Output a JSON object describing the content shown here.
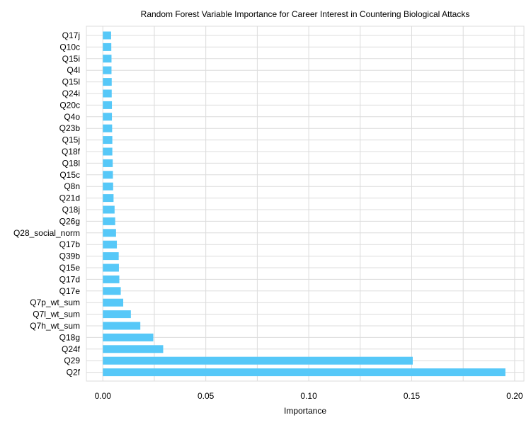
{
  "chart_data": {
    "type": "bar",
    "orientation": "horizontal",
    "title": "Random Forest Variable Importance for Career Interest in Countering Biological Attacks",
    "xlabel": "Importance",
    "ylabel": "",
    "xlim": [
      -0.008,
      0.2045
    ],
    "xticks": [
      0.0,
      0.05,
      0.1,
      0.15,
      0.2
    ],
    "xtick_labels": [
      "0.00",
      "0.05",
      "0.10",
      "0.15",
      "0.20"
    ],
    "grid": true,
    "bar_color": "#56c8f8",
    "grid_color": "#dcdcdc",
    "categories": [
      "Q17j",
      "Q10c",
      "Q15i",
      "Q4l",
      "Q15l",
      "Q24i",
      "Q20c",
      "Q4o",
      "Q23b",
      "Q15j",
      "Q18f",
      "Q18l",
      "Q15c",
      "Q8n",
      "Q21d",
      "Q18j",
      "Q26g",
      "Q28_social_norm",
      "Q17b",
      "Q39b",
      "Q15e",
      "Q17d",
      "Q17e",
      "Q7p_wt_sum",
      "Q7l_wt_sum",
      "Q7h_wt_sum",
      "Q18g",
      "Q24f",
      "Q29",
      "Q2f"
    ],
    "values": [
      0.004,
      0.0041,
      0.0042,
      0.0042,
      0.0043,
      0.0043,
      0.0044,
      0.0044,
      0.0045,
      0.0046,
      0.0046,
      0.0048,
      0.0049,
      0.005,
      0.0052,
      0.0057,
      0.006,
      0.0064,
      0.0068,
      0.0077,
      0.0078,
      0.008,
      0.0087,
      0.0099,
      0.0136,
      0.0182,
      0.0245,
      0.0293,
      0.1505,
      0.1955
    ]
  }
}
